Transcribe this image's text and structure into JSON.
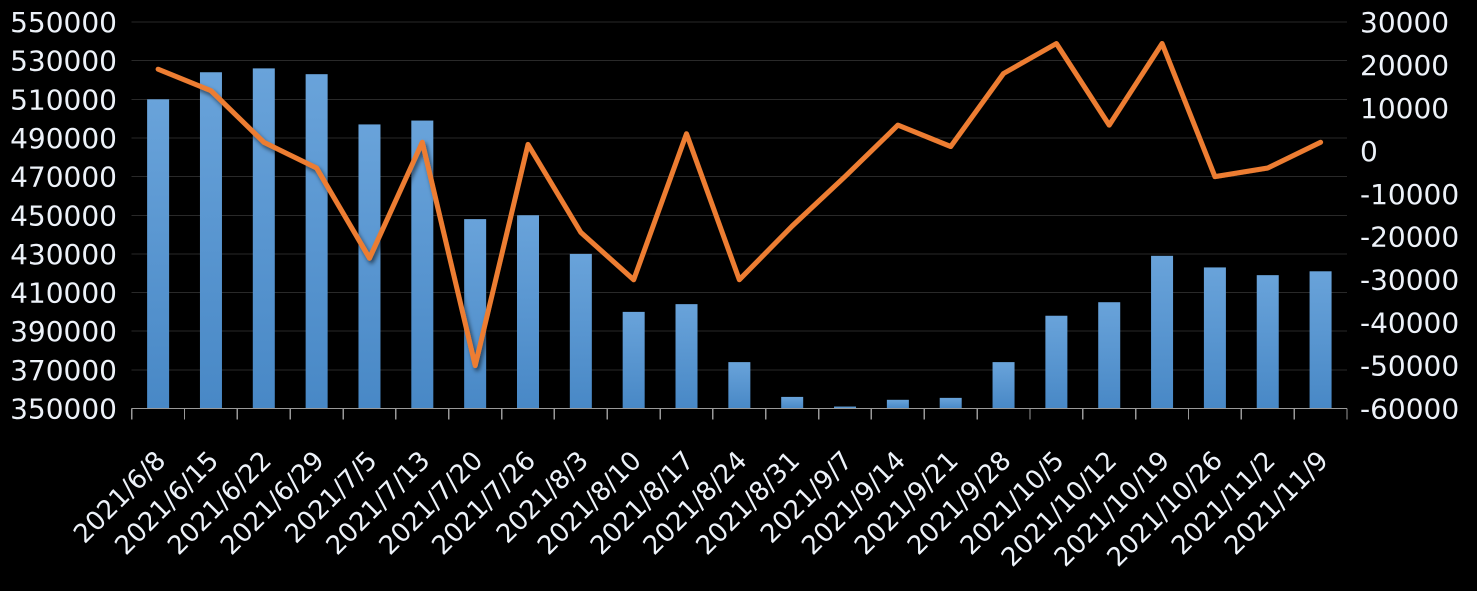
{
  "chart_data": {
    "type": "combo-bar-line",
    "title": "",
    "legend": "none",
    "background": "#000000",
    "categories": [
      "2021/6/8",
      "2021/6/15",
      "2021/6/22",
      "2021/6/29",
      "2021/7/5",
      "2021/7/13",
      "2021/7/20",
      "2021/7/26",
      "2021/8/3",
      "2021/8/10",
      "2021/8/17",
      "2021/8/24",
      "2021/8/31",
      "2021/9/7",
      "2021/9/14",
      "2021/9/21",
      "2021/9/28",
      "2021/10/5",
      "2021/10/12",
      "2021/10/19",
      "2021/10/26",
      "2021/11/2",
      "2021/11/9"
    ],
    "series": [
      {
        "id": "bar-series",
        "type": "bar",
        "axis": "left",
        "color_top": "#69A3DA",
        "color_bottom": "#4888C6",
        "values": [
          510000,
          524000,
          526000,
          523000,
          497000,
          499000,
          448000,
          450000,
          430000,
          400000,
          404000,
          374000,
          356000,
          351000,
          354500,
          355500,
          374000,
          398000,
          405000,
          429000,
          423000,
          419000,
          421000
        ]
      },
      {
        "id": "line-series",
        "type": "line",
        "axis": "right",
        "color": "#ED7D31",
        "values": [
          19000,
          14000,
          2000,
          -4000,
          -25000,
          2000,
          -50000,
          1500,
          -19000,
          -30000,
          4000,
          -30000,
          -17500,
          -6000,
          6000,
          1000,
          18000,
          25000,
          6000,
          25000,
          -6000,
          -4000,
          2000
        ]
      }
    ],
    "left_axis": {
      "min": 350000,
      "max": 550000,
      "step": 20000,
      "tick_labels": [
        "550000",
        "530000",
        "510000",
        "490000",
        "470000",
        "450000",
        "430000",
        "410000",
        "390000",
        "370000",
        "350000"
      ]
    },
    "right_axis": {
      "min": -60000,
      "max": 30000,
      "step": 10000,
      "tick_labels": [
        "30000",
        "20000",
        "10000",
        "0",
        "-10000",
        "-20000",
        "-30000",
        "-40000",
        "-50000",
        "-60000"
      ]
    },
    "grid": {
      "show": true,
      "color": "#292929"
    },
    "axis_line_color": "#999999",
    "tick_color": "#999999",
    "label_color": "#EDF2F9",
    "x_label_rotation_deg": -45
  }
}
